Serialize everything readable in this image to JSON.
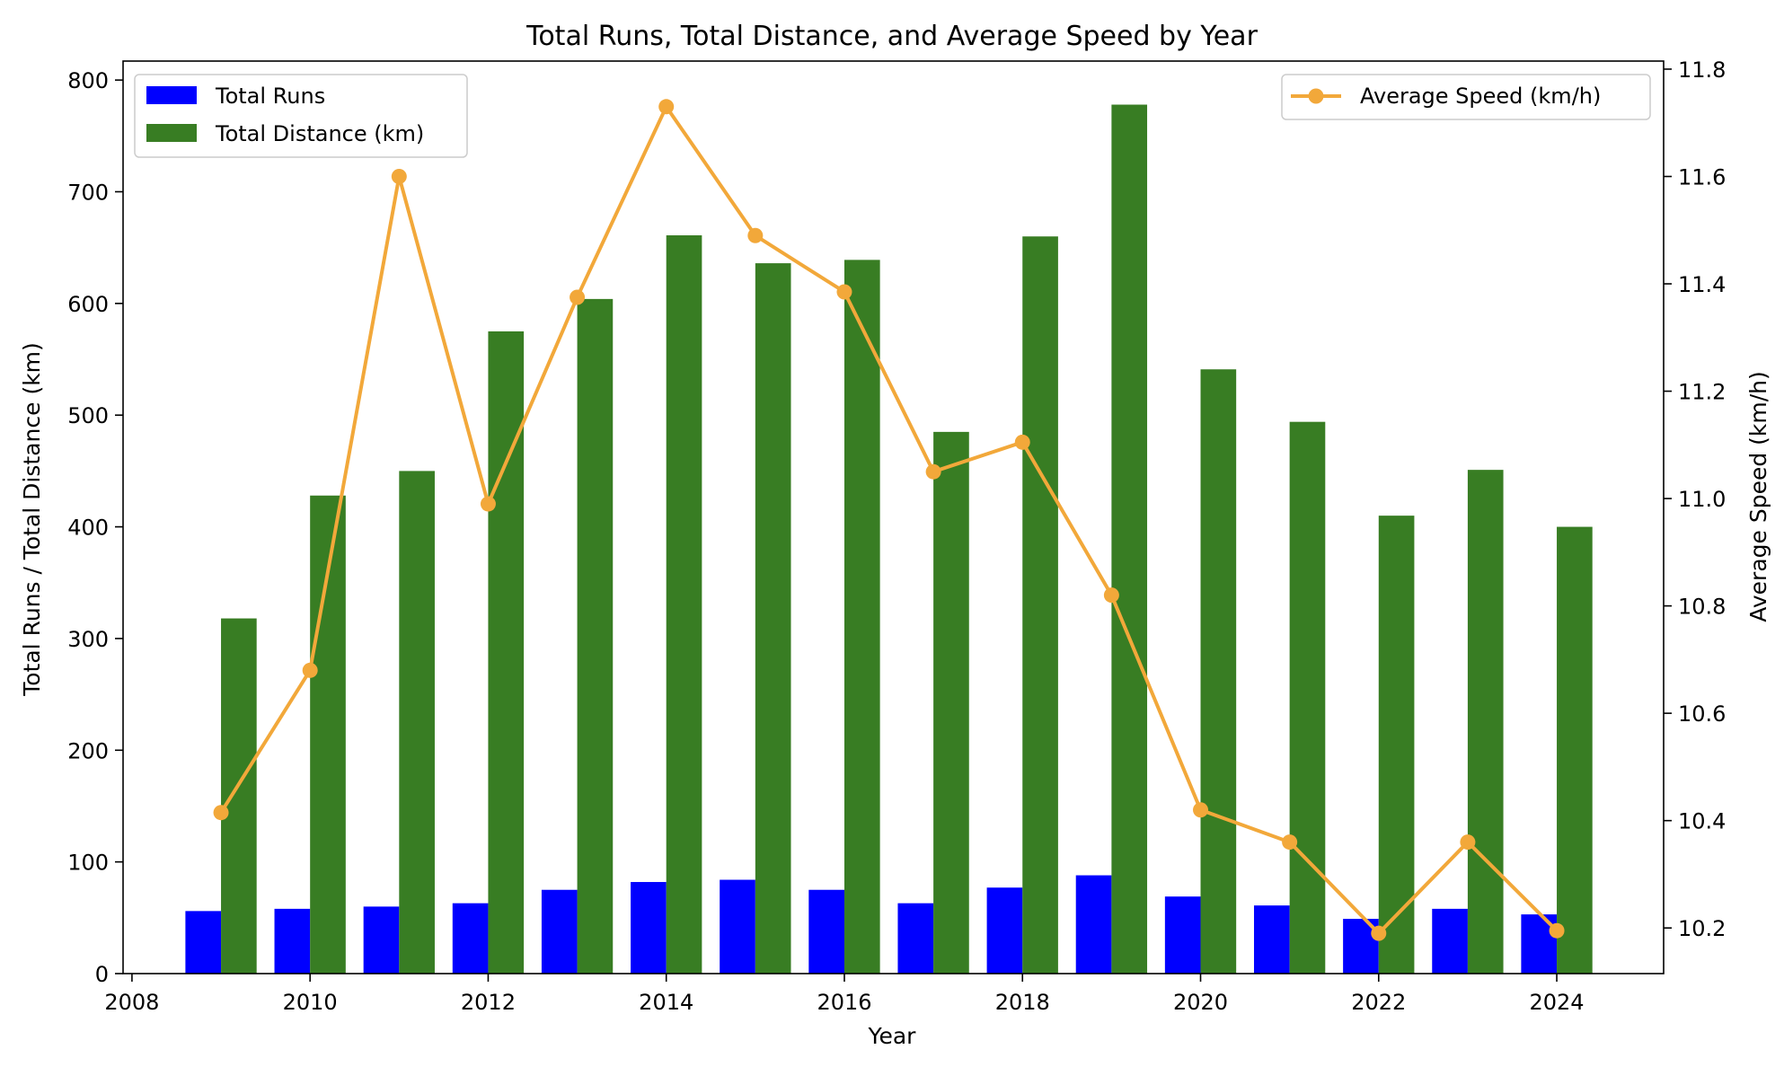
{
  "chart_data": {
    "type": "bar",
    "title": "Total Runs, Total Distance, and Average Speed by Year",
    "xlabel": "Year",
    "ylabel": "Total Runs / Total Distance (km)",
    "y2label": "Average Speed (km/h)",
    "x": [
      2009,
      2010,
      2011,
      2012,
      2013,
      2014,
      2015,
      2016,
      2017,
      2018,
      2019,
      2020,
      2021,
      2022,
      2023,
      2024
    ],
    "xlim": [
      2007.9,
      2025.2
    ],
    "ylim": [
      0,
      817
    ],
    "y2lim": [
      10.115,
      11.815
    ],
    "xticks": [
      2008,
      2010,
      2012,
      2014,
      2016,
      2018,
      2020,
      2022,
      2024
    ],
    "yticks": [
      0,
      100,
      200,
      300,
      400,
      500,
      600,
      700,
      800
    ],
    "y2ticks": [
      "10.2",
      "10.4",
      "10.6",
      "10.8",
      "11.0",
      "11.2",
      "11.4",
      "11.6",
      "11.8"
    ],
    "grid": false,
    "series": [
      {
        "name": "Total Runs",
        "kind": "bar",
        "axis": "left",
        "color": "#0000ff",
        "values": [
          56,
          58,
          60,
          63,
          75,
          82,
          84,
          75,
          63,
          77,
          88,
          69,
          61,
          49,
          58,
          53
        ]
      },
      {
        "name": "Total Distance (km)",
        "kind": "bar",
        "axis": "left",
        "color": "#387d23",
        "values": [
          318,
          428,
          450,
          575,
          604,
          661,
          636,
          639,
          485,
          660,
          778,
          541,
          494,
          410,
          451,
          400
        ]
      },
      {
        "name": "Average Speed (km/h)",
        "kind": "line",
        "axis": "right",
        "color": "#f2a83a",
        "values": [
          10.415,
          10.68,
          11.6,
          10.99,
          11.375,
          11.73,
          11.49,
          11.385,
          11.05,
          11.105,
          10.82,
          10.42,
          10.36,
          10.19,
          10.36,
          10.195
        ]
      }
    ],
    "legends": [
      {
        "placement": "top-left",
        "entries": [
          "Total Runs",
          "Total Distance (km)"
        ]
      },
      {
        "placement": "top-right",
        "entries": [
          "Average Speed (km/h)"
        ]
      }
    ]
  }
}
